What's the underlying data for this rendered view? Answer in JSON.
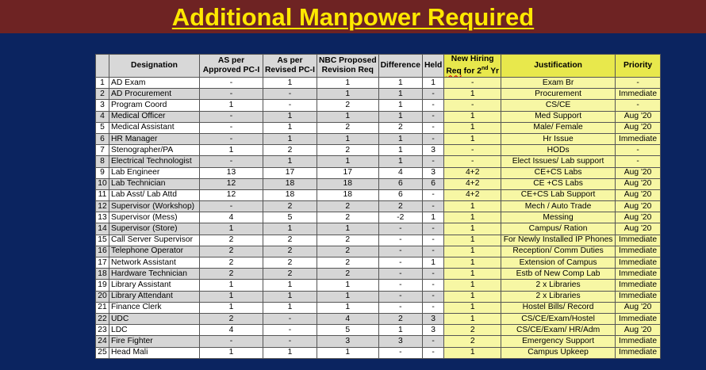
{
  "title": "Additional Manpower Required",
  "headers": {
    "num": "",
    "designation": "Designation",
    "as_approved_1": "AS per",
    "as_approved_2": "Approved PC-I",
    "as_revised_1": "As per",
    "as_revised_2": "Revised PC-I",
    "nbc_1": "NBC Proposed",
    "nbc_2": "Revision Req",
    "difference": "Difference",
    "held": "Held",
    "new_hiring_1": "New Hiring",
    "new_hiring_2a": "Req",
    "new_hiring_2b": " for 2",
    "new_hiring_sup": "nd",
    "new_hiring_2c": " Yr",
    "justification": "Justification",
    "priority": "Priority"
  },
  "rows": [
    {
      "n": "1",
      "designation": "AD Exam",
      "approved": "-",
      "revised": "1",
      "nbc": "1",
      "diff": "1",
      "held": "1",
      "new": "-",
      "just": "Exam Br",
      "priority": "-"
    },
    {
      "n": "2",
      "designation": "AD Procurement",
      "approved": "-",
      "revised": "-",
      "nbc": "1",
      "diff": "1",
      "held": "-",
      "new": "1",
      "just": "Procurement",
      "priority": "Immediate"
    },
    {
      "n": "3",
      "designation": "Program Coord",
      "approved": "1",
      "revised": "-",
      "nbc": "2",
      "diff": "1",
      "held": "-",
      "new": "-",
      "just": "CS/CE",
      "priority": "-"
    },
    {
      "n": "4",
      "designation": "Medical Officer",
      "approved": "-",
      "revised": "1",
      "nbc": "1",
      "diff": "1",
      "held": "-",
      "new": "1",
      "just": "Med Support",
      "priority": "Aug '20"
    },
    {
      "n": "5",
      "designation": "Medical Assistant",
      "approved": "-",
      "revised": "1",
      "nbc": "2",
      "diff": "2",
      "held": "-",
      "new": "1",
      "just": "Male/ Female",
      "priority": "Aug '20"
    },
    {
      "n": "6",
      "designation": "HR Manager",
      "approved": "-",
      "revised": "1",
      "nbc": "1",
      "diff": "1",
      "held": "-",
      "new": "1",
      "just": "Hr Issue",
      "priority": "Immediate"
    },
    {
      "n": "7",
      "designation": "Stenographer/PA",
      "approved": "1",
      "revised": "2",
      "nbc": "2",
      "diff": "1",
      "held": "3",
      "new": "-",
      "just": "HODs",
      "priority": "-"
    },
    {
      "n": "8",
      "designation": "Electrical Technologist",
      "approved": "-",
      "revised": "1",
      "nbc": "1",
      "diff": "1",
      "held": "-",
      "new": "-",
      "just": "Elect Issues/ Lab support",
      "priority": "-"
    },
    {
      "n": "9",
      "designation": "Lab Engineer",
      "approved": "13",
      "revised": "17",
      "nbc": "17",
      "diff": "4",
      "held": "3",
      "new": "4+2",
      "just": "CE+CS Labs",
      "priority": "Aug '20"
    },
    {
      "n": "10",
      "designation": "Lab Technician",
      "approved": "12",
      "revised": "18",
      "nbc": "18",
      "diff": "6",
      "held": "6",
      "new": "4+2",
      "just": "CE +CS Labs",
      "priority": "Aug '20"
    },
    {
      "n": "11",
      "designation": "Lab Asst/ Lab Attd",
      "approved": "12",
      "revised": "18",
      "nbc": "18",
      "diff": "6",
      "held": "-",
      "new": "4+2",
      "just": "CE+CS Lab Support",
      "priority": "Aug '20"
    },
    {
      "n": "12",
      "designation": "Supervisor (Workshop)",
      "approved": "-",
      "revised": "2",
      "nbc": "2",
      "diff": "2",
      "held": "-",
      "new": "1",
      "just": "Mech / Auto Trade",
      "priority": "Aug '20"
    },
    {
      "n": "13",
      "designation": "Supervisor (Mess)",
      "approved": "4",
      "revised": "5",
      "nbc": "2",
      "diff": "-2",
      "held": "1",
      "new": "1",
      "just": "Messing",
      "priority": "Aug '20"
    },
    {
      "n": "14",
      "designation": "Supervisor (Store)",
      "approved": "1",
      "revised": "1",
      "nbc": "1",
      "diff": "-",
      "held": "-",
      "new": "1",
      "just": "Campus/ Ration",
      "priority": "Aug '20"
    },
    {
      "n": "15",
      "designation": "Call Server Supervisor",
      "approved": "2",
      "revised": "2",
      "nbc": "2",
      "diff": "-",
      "held": "-",
      "new": "1",
      "just": "For Newly Installed IP Phones",
      "priority": "Immediate"
    },
    {
      "n": "16",
      "designation": "Telephone Operator",
      "approved": "2",
      "revised": "2",
      "nbc": "2",
      "diff": "-",
      "held": "-",
      "new": "1",
      "just": "Reception/ Comm Duties",
      "priority": "Immediate"
    },
    {
      "n": "17",
      "designation": "Network Assistant",
      "approved": "2",
      "revised": "2",
      "nbc": "2",
      "diff": "-",
      "held": "1",
      "new": "1",
      "just": "Extension of Campus",
      "priority": "Immediate"
    },
    {
      "n": "18",
      "designation": "Hardware Technician",
      "approved": "2",
      "revised": "2",
      "nbc": "2",
      "diff": "-",
      "held": "-",
      "new": "1",
      "just": "Estb of New Comp Lab",
      "priority": "Immediate"
    },
    {
      "n": "19",
      "designation": "Library Assistant",
      "approved": "1",
      "revised": "1",
      "nbc": "1",
      "diff": "-",
      "held": "-",
      "new": "1",
      "just": "2 x Libraries",
      "priority": "Immediate"
    },
    {
      "n": "20",
      "designation": "Library Attendant",
      "approved": "1",
      "revised": "1",
      "nbc": "1",
      "diff": "-",
      "held": "-",
      "new": "1",
      "just": "2 x Libraries",
      "priority": "Immediate"
    },
    {
      "n": "21",
      "designation": "Finance Clerk",
      "approved": "1",
      "revised": "1",
      "nbc": "1",
      "diff": "-",
      "held": "-",
      "new": "1",
      "just": "Hostel Bills/ Record",
      "priority": "Aug '20"
    },
    {
      "n": "22",
      "designation": "UDC",
      "approved": "2",
      "revised": "-",
      "nbc": "4",
      "diff": "2",
      "held": "3",
      "new": "1",
      "just": "CS/CE/Exam/Hostel",
      "priority": "Immediate"
    },
    {
      "n": "23",
      "designation": "LDC",
      "approved": "4",
      "revised": "-",
      "nbc": "5",
      "diff": "1",
      "held": "3",
      "new": "2",
      "just": "CS/CE/Exam/ HR/Adm",
      "priority": "Aug '20"
    },
    {
      "n": "24",
      "designation": "Fire Fighter",
      "approved": "-",
      "revised": "-",
      "nbc": "3",
      "diff": "3",
      "held": "-",
      "new": "2",
      "just": "Emergency Support",
      "priority": "Immediate"
    },
    {
      "n": "25",
      "designation": "Head Mali",
      "approved": "1",
      "revised": "1",
      "nbc": "1",
      "diff": "-",
      "held": "-",
      "new": "1",
      "just": "Campus Upkeep",
      "priority": "Immediate"
    }
  ]
}
